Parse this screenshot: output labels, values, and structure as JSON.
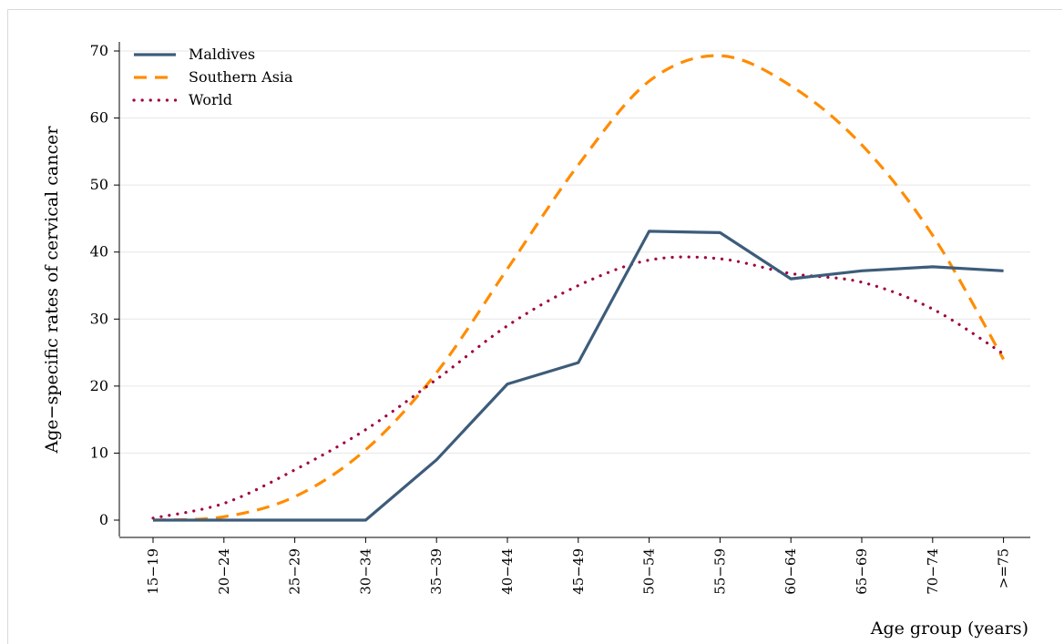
{
  "chart_data": {
    "type": "line",
    "title": "",
    "xlabel": "Age group (years)",
    "ylabel": "Age−specific rates of cervical cancer",
    "ylim": [
      0,
      70
    ],
    "yticks": [
      0,
      10,
      20,
      30,
      40,
      50,
      60,
      70
    ],
    "grid": true,
    "legend_position": "top-left",
    "categories": [
      "15−19",
      "20−24",
      "25−29",
      "30−34",
      "35−39",
      "40−44",
      "45−49",
      "50−54",
      "55−59",
      "60−64",
      "65−69",
      "70−74",
      ">=75"
    ],
    "series": [
      {
        "name": "Maldives",
        "style": "solid",
        "color": "#3d5c7a",
        "values": [
          0.0,
          0.0,
          0.0,
          0.0,
          9.0,
          20.3,
          23.5,
          43.1,
          42.9,
          36.0,
          37.2,
          37.8,
          37.2
        ]
      },
      {
        "name": "Southern Asia",
        "style": "dashed",
        "color": "#ff8c00",
        "values": [
          0.0,
          0.5,
          3.5,
          10.5,
          22.0,
          37.5,
          53.0,
          65.5,
          69.3,
          64.8,
          56.0,
          42.5,
          24.0
        ]
      },
      {
        "name": "World",
        "style": "dotted",
        "color": "#a00040",
        "values": [
          0.3,
          2.5,
          7.5,
          13.5,
          21.0,
          29.0,
          35.0,
          38.8,
          39.0,
          36.8,
          35.5,
          31.5,
          24.8
        ]
      }
    ]
  }
}
